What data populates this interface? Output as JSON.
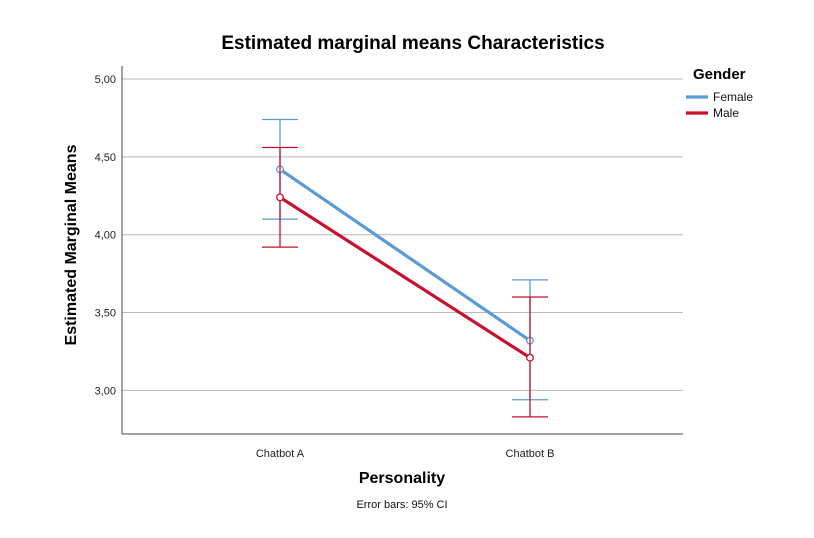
{
  "chart_data": {
    "type": "line",
    "title": "Estimated marginal means Characteristics",
    "xlabel": "Personality",
    "ylabel": "Estimated Marginal Means",
    "categories": [
      "Chatbot A",
      "Chatbot B"
    ],
    "ylim": [
      2.72,
      5.0
    ],
    "yticks": [
      3.0,
      3.5,
      4.0,
      4.5,
      5.0
    ],
    "ytick_labels": [
      "3,00",
      "3,50",
      "4,00",
      "4,50",
      "5,00"
    ],
    "grid": true,
    "legend": {
      "title": "Gender",
      "position": "top-right"
    },
    "footnote": "Error bars: 95% CI",
    "series": [
      {
        "name": "Female",
        "color": "#5b9bd5",
        "values": [
          4.42,
          3.32
        ],
        "ci_low": [
          4.1,
          2.94
        ],
        "ci_high": [
          4.74,
          3.71
        ]
      },
      {
        "name": "Male",
        "color": "#c8102e",
        "values": [
          4.24,
          3.21
        ],
        "ci_low": [
          3.92,
          2.83
        ],
        "ci_high": [
          4.56,
          3.6
        ]
      }
    ]
  }
}
